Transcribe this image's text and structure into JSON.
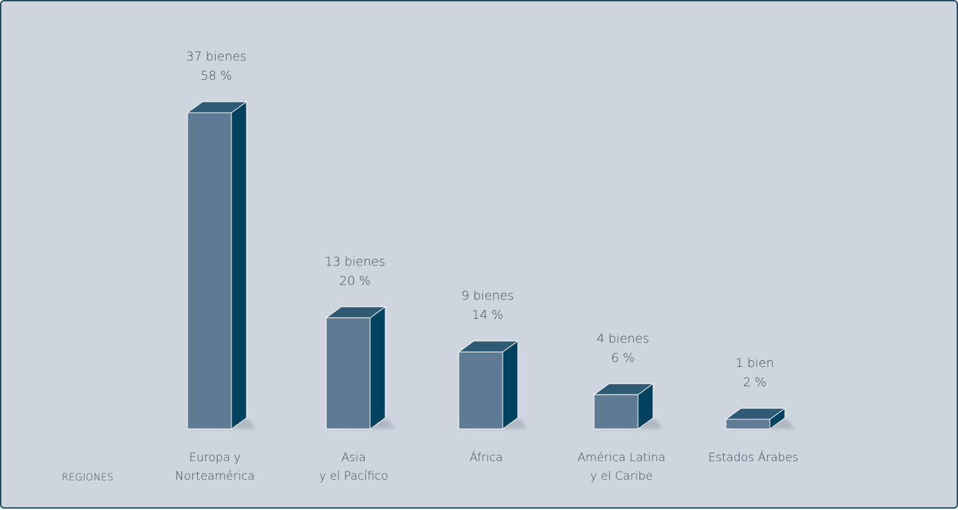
{
  "chart_data": {
    "type": "bar",
    "title": "",
    "xlabel": "REGIONES",
    "ylabel": "",
    "categories": [
      [
        "Europa y",
        "Norteamérica"
      ],
      [
        "Asia",
        "y el Pacífico"
      ],
      [
        "África"
      ],
      [
        "América Latina",
        "y el Caribe"
      ],
      [
        "Estados Árabes"
      ]
    ],
    "series": [
      {
        "values": [
          37,
          13,
          9,
          4,
          1
        ],
        "percent": [
          58,
          20,
          14,
          6,
          2
        ],
        "data_labels": [
          [
            "37 bienes",
            "58 %"
          ],
          [
            "13 bienes",
            "20 %"
          ],
          [
            "9 bienes",
            "14 %"
          ],
          [
            "4 bienes",
            "6 %"
          ],
          [
            "1 bien",
            "2 %"
          ]
        ]
      }
    ],
    "ylim": [
      0,
      37
    ],
    "grid": false,
    "colors": {
      "front": "#5f7b93",
      "side": "#00425f",
      "top": "#2f5a76",
      "background": "#ced5df",
      "border": "#1f4d66",
      "text": "#3e4a55"
    }
  }
}
